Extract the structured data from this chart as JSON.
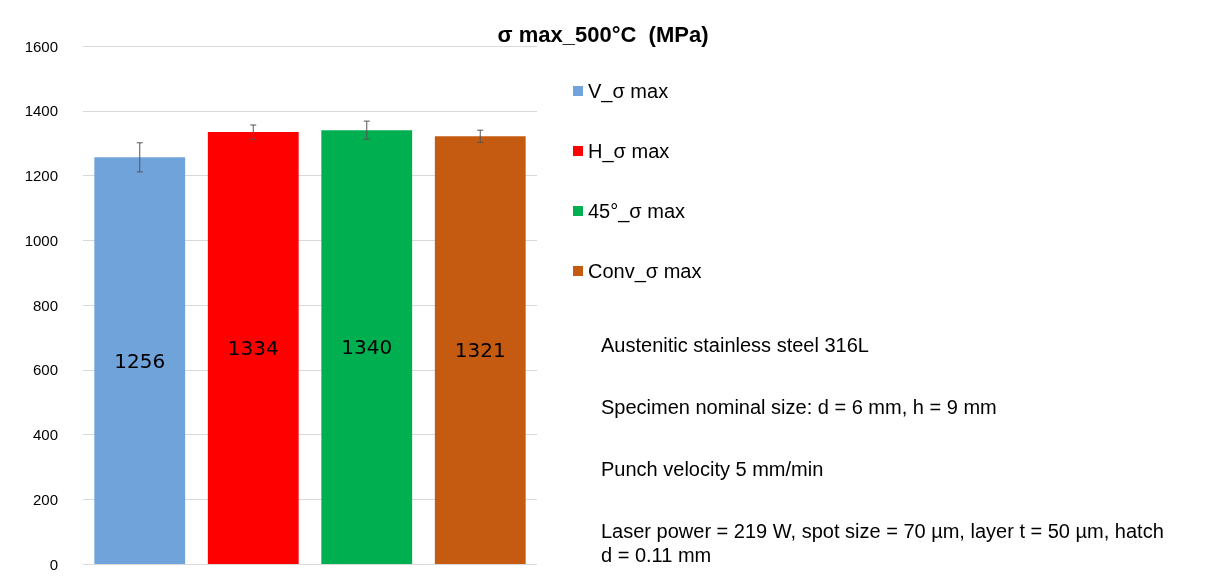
{
  "chart_data": {
    "type": "bar",
    "title": "σ max_500°C  (MPa)",
    "categories": [
      null,
      null,
      null,
      null
    ],
    "series": [
      {
        "name": "V_σ max",
        "color": "#6fa3da",
        "values": [
          1256,
          null,
          null,
          null
        ],
        "errors": [
          45,
          null,
          null,
          null
        ]
      },
      {
        "name": "H_σ max",
        "color": "#ff0000",
        "values": [
          null,
          1334,
          null,
          null
        ],
        "errors": [
          null,
          22,
          null,
          null
        ]
      },
      {
        "name": "45°_σ max",
        "color": "#00b050",
        "values": [
          null,
          null,
          1340,
          null
        ],
        "errors": [
          null,
          null,
          28,
          null
        ]
      },
      {
        "name": "Conv_σ max",
        "color": "#c55a11",
        "values": [
          null,
          null,
          null,
          1321
        ],
        "errors": [
          null,
          null,
          null,
          19
        ]
      }
    ],
    "ylim": [
      0,
      1600
    ],
    "yticks": [
      0,
      200,
      400,
      600,
      800,
      1000,
      1200,
      1400,
      1600
    ],
    "grid": "y",
    "legend": "right",
    "data_labels": true,
    "annotations": [
      "Austenitic stainless steel 316L",
      "Specimen nominal size: d = 6 mm, h = 9 mm",
      "Punch velocity 5 mm/min",
      "Laser power = 219 W, spot size = 70 µm, layer t = 50 µm, hatch d = 0.11 mm"
    ]
  }
}
